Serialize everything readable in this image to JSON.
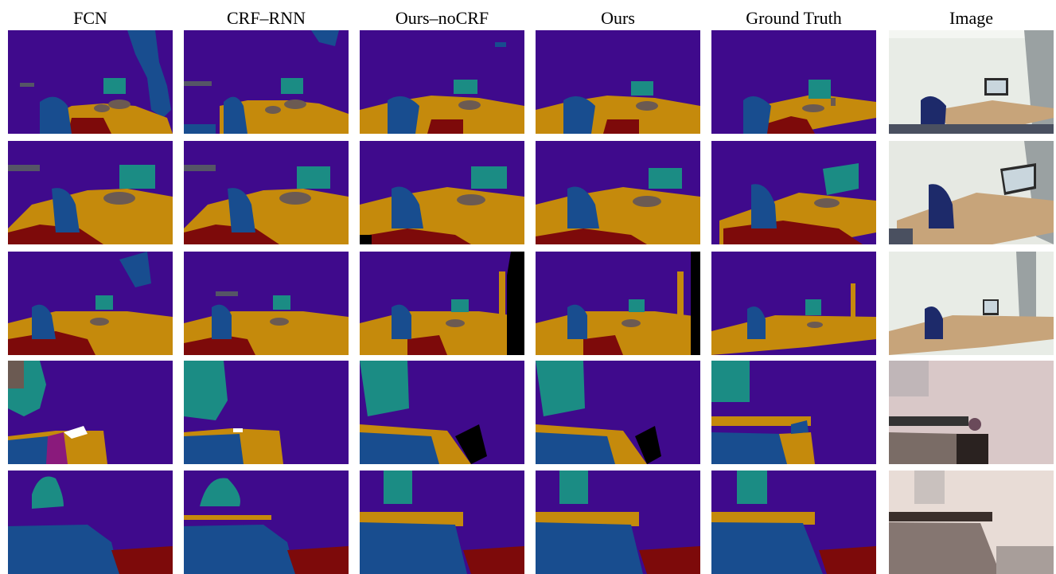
{
  "columns": [
    {
      "key": "fcn",
      "label": "FCN"
    },
    {
      "key": "crfrnn",
      "label": "CRF–RNN"
    },
    {
      "key": "oursnocrf",
      "label": "Ours–noCRF"
    },
    {
      "key": "ours",
      "label": "Ours"
    },
    {
      "key": "gt",
      "label": "Ground Truth"
    },
    {
      "key": "image",
      "label": "Image"
    }
  ],
  "rows": 5,
  "segmentation_palette": {
    "wall": "#3f0a8c",
    "table": "#c58a0c",
    "chair": "#184d8f",
    "monitor": "#1b8c84",
    "floor": "#7d0a0a",
    "object": "#6b5a52",
    "bed": "#184d8f",
    "picture": "#1b8c84",
    "unlabeled": "#000000"
  }
}
